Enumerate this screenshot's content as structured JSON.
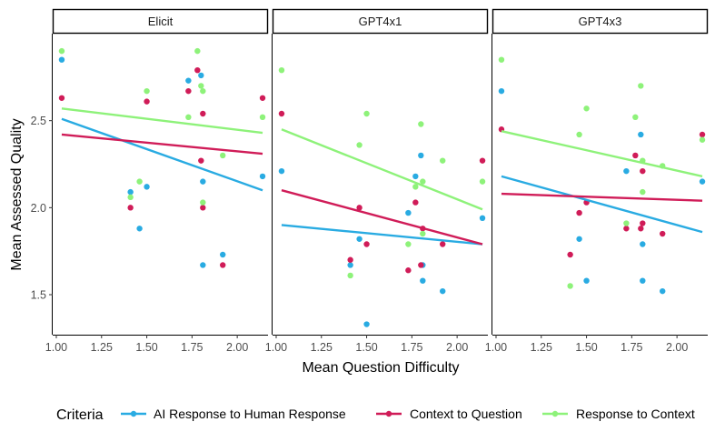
{
  "chart_data": {
    "type": "scatter",
    "xlabel": "Mean Question Difficulty",
    "ylabel": "Mean Assessed Quality",
    "xlim": [
      0.98,
      2.17
    ],
    "ylim": [
      1.27,
      3.0
    ],
    "x_ticks": [
      1.0,
      1.25,
      1.5,
      1.75,
      2.0
    ],
    "x_tick_labels": [
      "1.00",
      "1.25",
      "1.50",
      "1.75",
      "2.00"
    ],
    "y_ticks": [
      1.5,
      2.0,
      2.5
    ],
    "y_tick_labels": [
      "1.5",
      "2.0",
      "2.5"
    ],
    "grid": false,
    "legend": {
      "title": "Criteria",
      "placement": "bottom",
      "entries": [
        "AI Response to Human Response",
        "Context to Question",
        "Response to Context"
      ]
    },
    "colors": {
      "AI Response to Human Response": "#29ABE2",
      "Context to Question": "#D01C58",
      "Response to Context": "#8EF27A"
    },
    "panels": [
      {
        "title": "Elicit",
        "series": [
          {
            "name": "AI Response to Human Response",
            "points": [
              [
                1.03,
                2.85
              ],
              [
                1.41,
                2.09
              ],
              [
                1.46,
                1.88
              ],
              [
                1.5,
                2.12
              ],
              [
                1.73,
                2.73
              ],
              [
                1.8,
                2.76
              ],
              [
                1.81,
                2.15
              ],
              [
                1.81,
                1.67
              ],
              [
                1.92,
                1.73
              ],
              [
                2.14,
                2.18
              ]
            ],
            "fit": [
              [
                1.03,
                2.51
              ],
              [
                2.14,
                2.1
              ]
            ]
          },
          {
            "name": "Context to Question",
            "points": [
              [
                1.03,
                2.63
              ],
              [
                1.41,
                2.0
              ],
              [
                1.5,
                2.61
              ],
              [
                1.73,
                2.67
              ],
              [
                1.78,
                2.79
              ],
              [
                1.8,
                2.27
              ],
              [
                1.81,
                2.54
              ],
              [
                1.81,
                2.0
              ],
              [
                1.92,
                1.67
              ],
              [
                2.14,
                2.63
              ]
            ],
            "fit": [
              [
                1.03,
                2.42
              ],
              [
                2.14,
                2.31
              ]
            ]
          },
          {
            "name": "Response to Context",
            "points": [
              [
                1.03,
                2.9
              ],
              [
                1.41,
                2.06
              ],
              [
                1.46,
                2.15
              ],
              [
                1.5,
                2.67
              ],
              [
                1.73,
                2.52
              ],
              [
                1.78,
                2.9
              ],
              [
                1.8,
                2.7
              ],
              [
                1.81,
                2.67
              ],
              [
                1.81,
                2.03
              ],
              [
                1.92,
                2.3
              ],
              [
                2.14,
                2.52
              ]
            ],
            "fit": [
              [
                1.03,
                2.57
              ],
              [
                2.14,
                2.43
              ]
            ]
          }
        ]
      },
      {
        "title": "GPT4x1",
        "series": [
          {
            "name": "AI Response to Human Response",
            "points": [
              [
                1.03,
                2.21
              ],
              [
                1.41,
                1.67
              ],
              [
                1.46,
                1.82
              ],
              [
                1.5,
                1.33
              ],
              [
                1.73,
                1.97
              ],
              [
                1.77,
                2.18
              ],
              [
                1.8,
                2.3
              ],
              [
                1.81,
                1.67
              ],
              [
                1.81,
                1.58
              ],
              [
                1.92,
                1.52
              ],
              [
                2.14,
                1.94
              ]
            ],
            "fit": [
              [
                1.03,
                1.9
              ],
              [
                2.14,
                1.79
              ]
            ]
          },
          {
            "name": "Context to Question",
            "points": [
              [
                1.03,
                2.54
              ],
              [
                1.41,
                1.7
              ],
              [
                1.46,
                2.0
              ],
              [
                1.5,
                1.79
              ],
              [
                1.73,
                1.64
              ],
              [
                1.77,
                2.03
              ],
              [
                1.8,
                1.67
              ],
              [
                1.81,
                1.88
              ],
              [
                1.92,
                1.79
              ],
              [
                2.14,
                2.27
              ]
            ],
            "fit": [
              [
                1.03,
                2.1
              ],
              [
                2.14,
                1.79
              ]
            ]
          },
          {
            "name": "Response to Context",
            "points": [
              [
                1.03,
                2.79
              ],
              [
                1.41,
                1.61
              ],
              [
                1.46,
                2.36
              ],
              [
                1.5,
                2.54
              ],
              [
                1.73,
                1.79
              ],
              [
                1.77,
                2.12
              ],
              [
                1.8,
                2.48
              ],
              [
                1.81,
                2.15
              ],
              [
                1.81,
                1.85
              ],
              [
                1.92,
                2.27
              ],
              [
                2.14,
                2.15
              ]
            ],
            "fit": [
              [
                1.03,
                2.45
              ],
              [
                2.14,
                1.99
              ]
            ]
          }
        ]
      },
      {
        "title": "GPT4x3",
        "series": [
          {
            "name": "AI Response to Human Response",
            "points": [
              [
                1.03,
                2.67
              ],
              [
                1.46,
                1.82
              ],
              [
                1.5,
                1.58
              ],
              [
                1.72,
                2.21
              ],
              [
                1.8,
                2.42
              ],
              [
                1.81,
                1.79
              ],
              [
                1.81,
                1.58
              ],
              [
                1.92,
                1.52
              ],
              [
                2.14,
                2.15
              ]
            ],
            "fit": [
              [
                1.03,
                2.18
              ],
              [
                2.14,
                1.86
              ]
            ]
          },
          {
            "name": "Context to Question",
            "points": [
              [
                1.03,
                2.45
              ],
              [
                1.41,
                1.73
              ],
              [
                1.46,
                1.97
              ],
              [
                1.5,
                2.03
              ],
              [
                1.72,
                1.88
              ],
              [
                1.77,
                2.3
              ],
              [
                1.8,
                1.88
              ],
              [
                1.81,
                2.21
              ],
              [
                1.81,
                1.91
              ],
              [
                1.92,
                1.85
              ],
              [
                2.14,
                2.42
              ]
            ],
            "fit": [
              [
                1.03,
                2.08
              ],
              [
                2.14,
                2.04
              ]
            ]
          },
          {
            "name": "Response to Context",
            "points": [
              [
                1.03,
                2.85
              ],
              [
                1.41,
                1.55
              ],
              [
                1.46,
                2.42
              ],
              [
                1.5,
                2.57
              ],
              [
                1.72,
                1.91
              ],
              [
                1.77,
                2.52
              ],
              [
                1.8,
                2.7
              ],
              [
                1.81,
                2.27
              ],
              [
                1.81,
                2.09
              ],
              [
                1.92,
                2.24
              ],
              [
                2.14,
                2.39
              ]
            ],
            "fit": [
              [
                1.03,
                2.44
              ],
              [
                2.14,
                2.18
              ]
            ]
          }
        ]
      }
    ]
  }
}
